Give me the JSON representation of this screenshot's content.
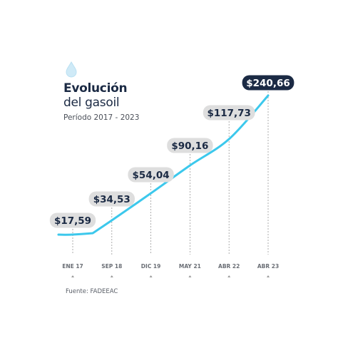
{
  "header": {
    "title_line1": "Evolución",
    "title_line2": "del gasoil",
    "subtitle": "Período 2017 - 2023"
  },
  "footer": {
    "source": "Fuente: FADEEAC"
  },
  "icons": {
    "header": "water-drop-icon"
  },
  "colors": {
    "line": "#3cc8ec",
    "label_bg": "#dedede",
    "label_text": "#1b2a44",
    "highlight_bg": "#1b2a44",
    "highlight_text": "#ffffff",
    "guide": "#9a9a9a",
    "drop": "#cfeaf7"
  },
  "chart_data": {
    "type": "line",
    "categories": [
      "ENE 17",
      "SEP 18",
      "DIC 19",
      "MAY 21",
      "ABR 22",
      "ABR 23"
    ],
    "series": [
      {
        "values": [
          17.59,
          34.53,
          54.04,
          90.16,
          117.73,
          240.66
        ]
      }
    ],
    "value_labels": [
      "$17,59",
      "$34,53",
      "$54,04",
      "$90,16",
      "$117,73",
      "$240,66"
    ],
    "title": "Evolución del gasoil",
    "subtitle": "Período 2017 - 2023",
    "highlight_last": true,
    "grid": false
  }
}
